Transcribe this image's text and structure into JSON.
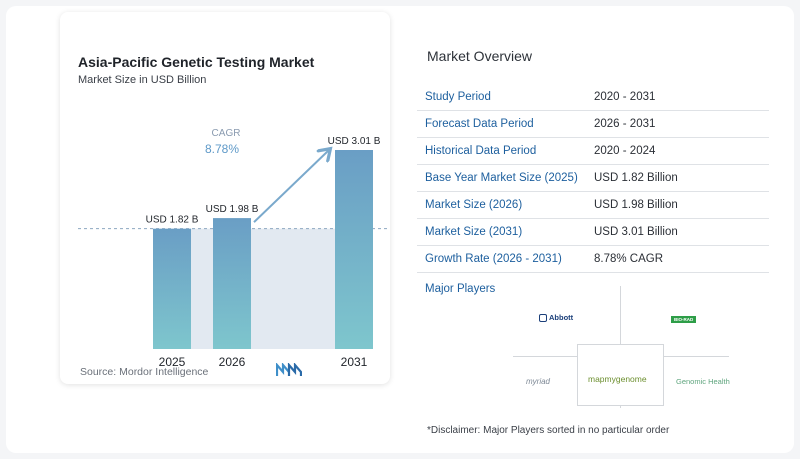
{
  "chart": {
    "title": "Asia-Pacific Genetic Testing Market",
    "subtitle": "Market Size in USD Billion",
    "source": "Source:  Mordor Intelligence",
    "cagr_label": "CAGR",
    "cagr_value": "8.78%"
  },
  "chart_data": {
    "type": "bar",
    "title": "Asia-Pacific Genetic Testing Market",
    "subtitle": "Market Size in USD Billion",
    "categories": [
      "2025",
      "2026",
      "2031"
    ],
    "values": [
      1.82,
      1.98,
      3.01
    ],
    "data_labels": [
      "USD 1.82 B",
      "USD 1.98 B",
      "USD 3.01 B"
    ],
    "annotation": "CAGR 8.78%",
    "colors": {
      "bar_top": "#6a9ec5",
      "bar_bottom": "#7ec6cd",
      "shade": "#e2e9f1",
      "arrow": "#7aa9cc",
      "cagr_text": "#5e99c8"
    }
  },
  "overview": {
    "title": "Market Overview",
    "rows": [
      {
        "label": "Study Period",
        "value": "2020 - 2031"
      },
      {
        "label": "Forecast Data Period",
        "value": "2026 - 2031"
      },
      {
        "label": "Historical Data Period",
        "value": "2020 - 2024"
      },
      {
        "label": "Base Year Market Size (2025)",
        "value": "USD 1.82 Billion"
      },
      {
        "label": "Market Size (2026)",
        "value": "USD 1.98 Billion"
      },
      {
        "label": "Market Size (2031)",
        "value": "USD 3.01 Billion"
      },
      {
        "label": "Growth Rate (2026 - 2031)",
        "value": "8.78% CAGR"
      }
    ]
  },
  "players": {
    "title": "Major Players",
    "logos": [
      "Abbott",
      "BIO-RAD",
      "myriad",
      "mapmygenome",
      "Genomic Health"
    ],
    "disclaimer": "*Disclaimer: Major Players sorted in no particular order"
  },
  "accent_color": "#1d5f9e"
}
